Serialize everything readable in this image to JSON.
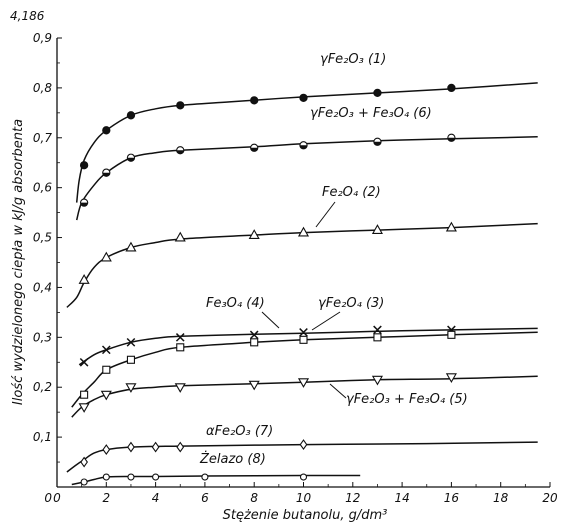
{
  "chart_data": {
    "type": "line",
    "title": "",
    "xlabel": "Stężenie butanolu, g/dm³",
    "ylabel": "Ilość wydzielonego ciepła w kJ/g absorbenta",
    "y_unit_note": "4,186",
    "xlim": [
      0,
      20
    ],
    "ylim": [
      0,
      0.9
    ],
    "x_ticks": [
      "0",
      "2",
      "4",
      "6",
      "8",
      "10",
      "12",
      "14",
      "16",
      "18",
      "20"
    ],
    "y_ticks": [
      "0,1",
      "0,2",
      "0,3",
      "0,4",
      "0,5",
      "0,6",
      "0,7",
      "0,8",
      "0,9"
    ],
    "grid": false,
    "series": [
      {
        "name": "γFe₂O₃ (1)",
        "marker": "filled-circle",
        "curve": [
          [
            0.8,
            0.57
          ],
          [
            0.9,
            0.615
          ],
          [
            1.1,
            0.655
          ],
          [
            1.5,
            0.69
          ],
          [
            2,
            0.715
          ],
          [
            3,
            0.745
          ],
          [
            4,
            0.758
          ],
          [
            5,
            0.765
          ],
          [
            7,
            0.772
          ],
          [
            10,
            0.782
          ],
          [
            13,
            0.79
          ],
          [
            16,
            0.798
          ],
          [
            19.5,
            0.81
          ]
        ],
        "points": [
          [
            1.1,
            0.645
          ],
          [
            2,
            0.715
          ],
          [
            3,
            0.745
          ],
          [
            5,
            0.765
          ],
          [
            8,
            0.775
          ],
          [
            10,
            0.78
          ],
          [
            13,
            0.79
          ],
          [
            16,
            0.8
          ]
        ]
      },
      {
        "name": "γFe₂O₃ + Fe₃O₄ (6)",
        "marker": "half-circle",
        "curve": [
          [
            0.8,
            0.535
          ],
          [
            1,
            0.57
          ],
          [
            1.5,
            0.605
          ],
          [
            2,
            0.63
          ],
          [
            3,
            0.66
          ],
          [
            4,
            0.67
          ],
          [
            5,
            0.675
          ],
          [
            8,
            0.682
          ],
          [
            10,
            0.688
          ],
          [
            13,
            0.694
          ],
          [
            16,
            0.698
          ],
          [
            19.5,
            0.702
          ]
        ],
        "points": [
          [
            1.1,
            0.57
          ],
          [
            2,
            0.63
          ],
          [
            3,
            0.66
          ],
          [
            5,
            0.675
          ],
          [
            8,
            0.68
          ],
          [
            10,
            0.685
          ],
          [
            13,
            0.692
          ],
          [
            16,
            0.7
          ]
        ]
      },
      {
        "name": "Fe₂O₄ (2)",
        "marker": "open-triangle",
        "curve": [
          [
            0.4,
            0.36
          ],
          [
            0.8,
            0.38
          ],
          [
            1.1,
            0.41
          ],
          [
            1.5,
            0.44
          ],
          [
            2,
            0.46
          ],
          [
            3,
            0.48
          ],
          [
            4,
            0.49
          ],
          [
            5,
            0.497
          ],
          [
            8,
            0.505
          ],
          [
            10,
            0.51
          ],
          [
            13,
            0.515
          ],
          [
            16,
            0.52
          ],
          [
            19.5,
            0.528
          ]
        ],
        "points": [
          [
            1.1,
            0.415
          ],
          [
            2,
            0.46
          ],
          [
            3,
            0.48
          ],
          [
            5,
            0.5
          ],
          [
            8,
            0.505
          ],
          [
            10,
            0.51
          ],
          [
            13,
            0.515
          ],
          [
            16,
            0.52
          ]
        ]
      },
      {
        "name": "Fe₃O₄ (4)",
        "marker": "cross",
        "curve": [
          [
            0.9,
            0.245
          ],
          [
            1.5,
            0.265
          ],
          [
            2,
            0.275
          ],
          [
            3,
            0.29
          ],
          [
            4,
            0.298
          ],
          [
            5,
            0.302
          ],
          [
            8,
            0.306
          ],
          [
            10,
            0.308
          ],
          [
            13,
            0.312
          ],
          [
            16,
            0.315
          ],
          [
            19.5,
            0.318
          ]
        ],
        "points": [
          [
            1.1,
            0.25
          ],
          [
            2,
            0.275
          ],
          [
            3,
            0.29
          ],
          [
            5,
            0.3
          ],
          [
            8,
            0.305
          ],
          [
            10,
            0.31
          ],
          [
            13,
            0.315
          ],
          [
            16,
            0.315
          ]
        ]
      },
      {
        "name": "γFe₂O₄ (3)",
        "marker": "open-square",
        "curve": [
          [
            0.6,
            0.16
          ],
          [
            1,
            0.185
          ],
          [
            1.5,
            0.21
          ],
          [
            2,
            0.235
          ],
          [
            3,
            0.255
          ],
          [
            4,
            0.27
          ],
          [
            5,
            0.28
          ],
          [
            8,
            0.29
          ],
          [
            10,
            0.295
          ],
          [
            13,
            0.3
          ],
          [
            16,
            0.305
          ],
          [
            19.5,
            0.31
          ]
        ],
        "points": [
          [
            1.1,
            0.185
          ],
          [
            2,
            0.235
          ],
          [
            3,
            0.255
          ],
          [
            5,
            0.28
          ],
          [
            8,
            0.29
          ],
          [
            10,
            0.295
          ],
          [
            13,
            0.3
          ],
          [
            16,
            0.305
          ]
        ]
      },
      {
        "name": "γFe₂O₃ + Fe₃O₄ (5)",
        "marker": "open-inverted-triangle",
        "curve": [
          [
            0.6,
            0.14
          ],
          [
            1,
            0.16
          ],
          [
            1.5,
            0.175
          ],
          [
            2,
            0.185
          ],
          [
            3,
            0.196
          ],
          [
            4,
            0.2
          ],
          [
            5,
            0.203
          ],
          [
            8,
            0.207
          ],
          [
            10,
            0.21
          ],
          [
            13,
            0.215
          ],
          [
            16,
            0.217
          ],
          [
            19.5,
            0.222
          ]
        ],
        "points": [
          [
            1.1,
            0.16
          ],
          [
            2,
            0.185
          ],
          [
            3,
            0.2
          ],
          [
            5,
            0.2
          ],
          [
            8,
            0.205
          ],
          [
            10,
            0.21
          ],
          [
            13,
            0.215
          ],
          [
            16,
            0.22
          ]
        ]
      },
      {
        "name": "αFe₂O₃ (7)",
        "marker": "diamond",
        "curve": [
          [
            0.4,
            0.03
          ],
          [
            0.8,
            0.045
          ],
          [
            1.1,
            0.055
          ],
          [
            1.5,
            0.068
          ],
          [
            2,
            0.075
          ],
          [
            3,
            0.08
          ],
          [
            5,
            0.082
          ],
          [
            10,
            0.085
          ],
          [
            15,
            0.087
          ],
          [
            19.5,
            0.09
          ]
        ],
        "points": [
          [
            1.1,
            0.05
          ],
          [
            2,
            0.075
          ],
          [
            3,
            0.08
          ],
          [
            4,
            0.08
          ],
          [
            5,
            0.08
          ],
          [
            10,
            0.085
          ]
        ]
      },
      {
        "name": "Żelazo (8)",
        "marker": "open-circle",
        "curve": [
          [
            0.6,
            0.005
          ],
          [
            1.1,
            0.01
          ],
          [
            1.5,
            0.015
          ],
          [
            2,
            0.02
          ],
          [
            3,
            0.021
          ],
          [
            4,
            0.021
          ],
          [
            6,
            0.022
          ],
          [
            10,
            0.023
          ],
          [
            12.3,
            0.023
          ]
        ],
        "points": [
          [
            1.1,
            0.01
          ],
          [
            2,
            0.02
          ],
          [
            3,
            0.02
          ],
          [
            4,
            0.02
          ],
          [
            6,
            0.02
          ],
          [
            10,
            0.02
          ]
        ]
      }
    ]
  }
}
